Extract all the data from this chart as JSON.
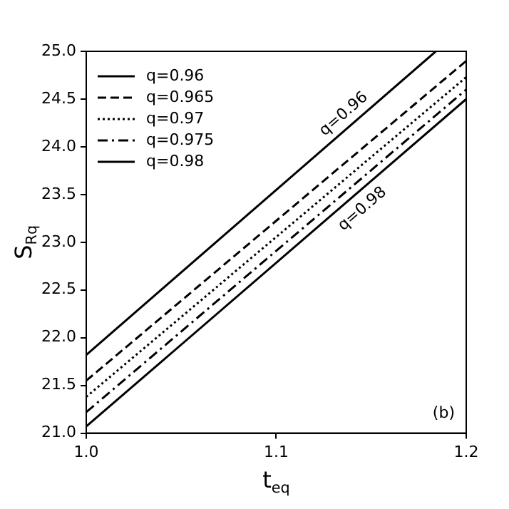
{
  "chart_data": {
    "type": "line",
    "xlabel": "t$_{eq}$",
    "ylabel": "S$_{Rq}$",
    "xlim": [
      1.0,
      1.2
    ],
    "xticks": [
      {
        "value": 1.0,
        "label": "1.0"
      },
      {
        "value": 1.1,
        "label": "1.1"
      },
      {
        "value": 1.2,
        "label": "1.2"
      }
    ],
    "ylim": [
      21.0,
      25.0
    ],
    "yticks": [
      {
        "value": 21,
        "label": "21.0"
      },
      21.5,
      {
        "value": 22,
        "label": "22.0"
      },
      22.5,
      {
        "value": 23,
        "label": "23.0"
      },
      23.5,
      {
        "value": 24,
        "label": "24.0"
      },
      24.5,
      {
        "value": 25,
        "label": "25.0"
      }
    ],
    "grid": false,
    "legend": "top left",
    "marker": "none",
    "series": [
      {
        "name": "q=0.96",
        "color": "#000000",
        "line_style": "solid",
        "x": [
          1.0,
          1.184
        ],
        "values": [
          21.82,
          25.0
        ]
      },
      {
        "name": "q=0.965",
        "color": "#000000",
        "line_style": "dashed",
        "x": [
          1.0,
          1.2
        ],
        "values": [
          21.55,
          24.9
        ]
      },
      {
        "name": "q=0.97",
        "color": "#000000",
        "line_style": "dotted",
        "x": [
          1.0,
          1.2
        ],
        "values": [
          21.38,
          24.73
        ]
      },
      {
        "name": "q=0.975",
        "color": "#000000",
        "line_style": "dashdot",
        "x": [
          1.0,
          1.2
        ],
        "values": [
          21.22,
          24.6
        ]
      },
      {
        "name": "q=0.98",
        "color": "#000000",
        "line_style": "solid",
        "x": [
          1.0,
          1.2
        ],
        "values": [
          21.07,
          24.5
        ]
      }
    ],
    "annotations": [
      "q=0.96",
      "q=0.98",
      "(b)"
    ]
  }
}
